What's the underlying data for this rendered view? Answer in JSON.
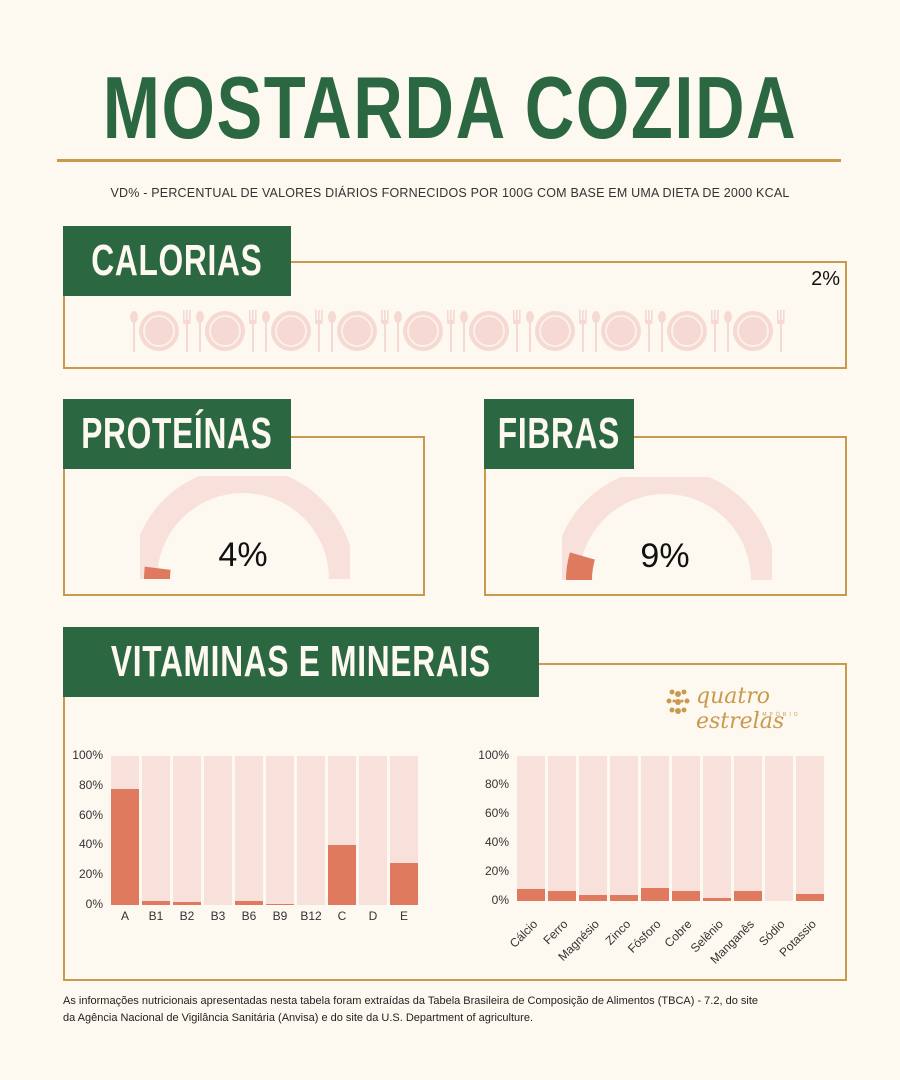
{
  "header": {
    "title": "MOSTARDA COZIDA",
    "subtitle": "VD% - PERCENTUAL DE VALORES DIÁRIOS FORNECIDOS POR 100G COM BASE EM UMA DIETA DE 2000 KCAL"
  },
  "calorias": {
    "label": "CALORIAS",
    "value": "2%",
    "icon": "plate-with-cutlery-icon",
    "icon_count": 10
  },
  "proteinas": {
    "label": "PROTEÍNAS",
    "value": "4%",
    "percent": 4
  },
  "fibras": {
    "label": "FIBRAS",
    "value": "9%",
    "percent": 9
  },
  "vitaminas": {
    "label": "VITAMINAS E MINERAIS"
  },
  "logo": {
    "name": "quatro estrelas",
    "sub": "EMPÓRIO",
    "icon": "floral-emblem-icon"
  },
  "colors": {
    "green": "#2b6841",
    "gold": "#c99a4e",
    "bar": "#e07a5f",
    "bar_bg": "#f8e0db",
    "background": "#fdf9f1"
  },
  "footer": {
    "line1": "As informações nutricionais apresentadas nesta tabela foram extraídas da Tabela Brasileira de Composição de Alimentos (TBCA) - 7.2, do site",
    "line2": "da Agência Nacional de Vigilância Sanitária (Anvisa) e do site da U.S. Department of agriculture."
  },
  "chart_data": [
    {
      "type": "gauge",
      "title": "PROTEÍNAS",
      "values": [
        4
      ],
      "ylim": [
        0,
        100
      ]
    },
    {
      "type": "gauge",
      "title": "FIBRAS",
      "values": [
        9
      ],
      "ylim": [
        0,
        100
      ]
    },
    {
      "type": "bar",
      "title": "Vitaminas",
      "categories": [
        "A",
        "B1",
        "B2",
        "B3",
        "B6",
        "B9",
        "B12",
        "C",
        "D",
        "E"
      ],
      "values": [
        78,
        3,
        2,
        0,
        3,
        1,
        0,
        40,
        0,
        28
      ],
      "yticks": [
        "100%",
        "80%",
        "60%",
        "40%",
        "20%",
        "0%"
      ],
      "ylim": [
        0,
        100
      ],
      "xlabel": "",
      "ylabel": "",
      "grid": false
    },
    {
      "type": "bar",
      "title": "Minerais",
      "categories": [
        "Cálcio",
        "Ferro",
        "Magnésio",
        "Zinco",
        "Fósforo",
        "Cobre",
        "Selênio",
        "Manganês",
        "Sódio",
        "Potassio"
      ],
      "values": [
        8,
        7,
        4,
        4,
        9,
        7,
        2,
        7,
        0,
        5
      ],
      "yticks": [
        "100%",
        "80%",
        "60%",
        "40%",
        "20%",
        "0%"
      ],
      "ylim": [
        0,
        100
      ],
      "xlabel": "",
      "ylabel": "",
      "grid": false
    }
  ]
}
